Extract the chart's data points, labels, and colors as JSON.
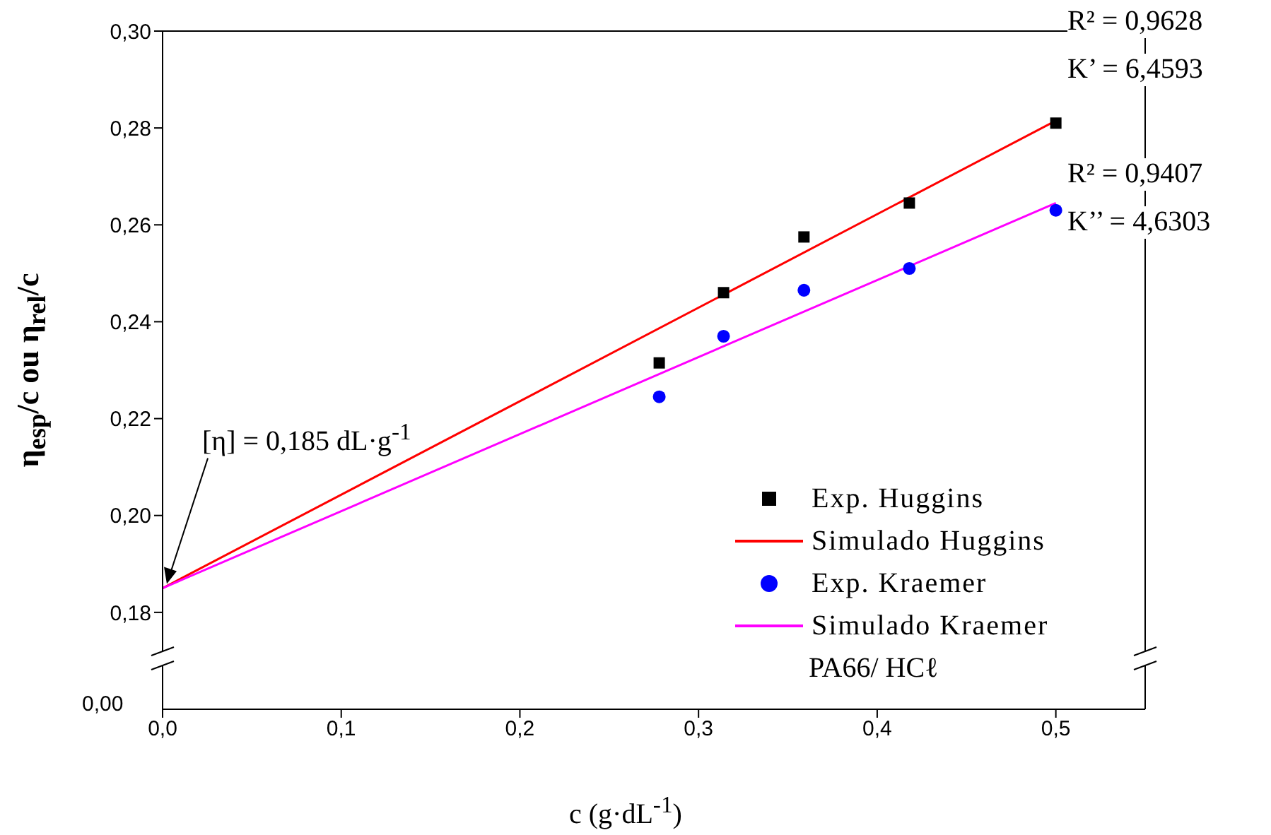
{
  "chart_data": {
    "type": "scatter",
    "xlabel": "c (g·dL$^{-1}$)",
    "ylabel": "η$_{esp}$/c ou η$_{rel}$/c",
    "xlim": [
      0,
      0.55
    ],
    "xticks": [
      {
        "value": 0,
        "label": "0,0"
      },
      {
        "value": 0.1,
        "label": "0,1"
      },
      {
        "value": 0.2,
        "label": "0,2"
      },
      {
        "value": 0.3,
        "label": "0,3"
      },
      {
        "value": 0.4,
        "label": "0,4"
      },
      {
        "value": 0.5,
        "label": "0,5"
      }
    ],
    "ylim": [
      0.16,
      0.3
    ],
    "yticks": [
      {
        "value": 0.18,
        "label": "0,18"
      },
      {
        "value": 0.2,
        "label": "0,20"
      },
      {
        "value": 0.22,
        "label": "0,22"
      },
      {
        "value": 0.24,
        "label": "0,24"
      },
      {
        "value": 0.26,
        "label": "0,26"
      },
      {
        "value": 0.28,
        "label": "0,28"
      },
      {
        "value": 0.3,
        "label": "0,30"
      }
    ],
    "series": [
      {
        "name": "Exp. Huggins",
        "marker": "square",
        "color": "#000000",
        "x": [
          0.278,
          0.314,
          0.359,
          0.418,
          0.5
        ],
        "values": [
          0.2315,
          0.246,
          0.2575,
          0.2645,
          0.281
        ]
      },
      {
        "name": "Simulado Huggins",
        "type": "line",
        "marker": "none",
        "color": "#ff0000",
        "x": [
          0,
          0.5
        ],
        "values": [
          0.185,
          0.2815
        ]
      },
      {
        "name": "Exp. Kraemer",
        "marker": "circle",
        "color": "#0000ff",
        "x": [
          0.278,
          0.314,
          0.359,
          0.418,
          0.5
        ],
        "values": [
          0.2245,
          0.237,
          0.2465,
          0.251,
          0.263
        ]
      },
      {
        "name": "Simulado Kraemer",
        "type": "line",
        "marker": "none",
        "color": "#ff00ff",
        "x": [
          0,
          0.5
        ],
        "values": [
          0.185,
          0.2645
        ]
      }
    ],
    "legend": "bottom right",
    "grid": false,
    "annotations": [
      "R² = 0,9628",
      "K’ = 6,4593",
      "R² = 0,9407",
      "K’’ = 4,6303",
      {
        "text": "[η] = 0,185 dL·g$^{-1}$",
        "x": 0,
        "y": 0.185
      },
      "PA66/ HCℓ",
      "0,00"
    ]
  }
}
